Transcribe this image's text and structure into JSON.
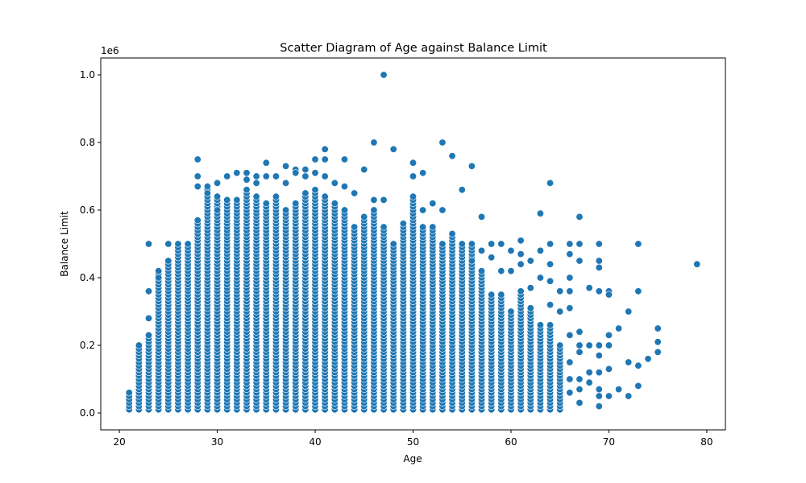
{
  "chart_data": {
    "type": "scatter",
    "title": "Scatter Diagram of Age  against  Balance Limit",
    "xlabel": "Age",
    "ylabel": "Balance Limit",
    "y_offset_label": "1e6",
    "xlim": [
      18.1,
      81.9
    ],
    "ylim": [
      -0.05,
      1.05
    ],
    "x_ticks": [
      20,
      30,
      40,
      50,
      60,
      70,
      80
    ],
    "y_ticks": [
      0.0,
      0.2,
      0.4,
      0.6,
      0.8,
      1.0
    ],
    "x_tick_labels": [
      "20",
      "30",
      "40",
      "50",
      "60",
      "70",
      "80"
    ],
    "y_tick_labels": [
      "0.0",
      "0.2",
      "0.4",
      "0.6",
      "0.8",
      "1.0"
    ],
    "point_color": "#1f77b4",
    "point_edge_color": "#ffffff",
    "dense_columns": [
      {
        "age": 21,
        "max": 0.06
      },
      {
        "age": 22,
        "max": 0.2
      },
      {
        "age": 23,
        "max": 0.23
      },
      {
        "age": 24,
        "max": 0.42
      },
      {
        "age": 25,
        "max": 0.45
      },
      {
        "age": 26,
        "max": 0.5
      },
      {
        "age": 27,
        "max": 0.5
      },
      {
        "age": 28,
        "max": 0.57
      },
      {
        "age": 29,
        "max": 0.67
      },
      {
        "age": 30,
        "max": 0.64
      },
      {
        "age": 31,
        "max": 0.63
      },
      {
        "age": 32,
        "max": 0.63
      },
      {
        "age": 33,
        "max": 0.66
      },
      {
        "age": 34,
        "max": 0.64
      },
      {
        "age": 35,
        "max": 0.62
      },
      {
        "age": 36,
        "max": 0.64
      },
      {
        "age": 37,
        "max": 0.6
      },
      {
        "age": 38,
        "max": 0.62
      },
      {
        "age": 39,
        "max": 0.65
      },
      {
        "age": 40,
        "max": 0.66
      },
      {
        "age": 41,
        "max": 0.64
      },
      {
        "age": 42,
        "max": 0.62
      },
      {
        "age": 43,
        "max": 0.6
      },
      {
        "age": 44,
        "max": 0.55
      },
      {
        "age": 45,
        "max": 0.58
      },
      {
        "age": 46,
        "max": 0.6
      },
      {
        "age": 47,
        "max": 0.55
      },
      {
        "age": 48,
        "max": 0.5
      },
      {
        "age": 49,
        "max": 0.56
      },
      {
        "age": 50,
        "max": 0.64
      },
      {
        "age": 51,
        "max": 0.55
      },
      {
        "age": 52,
        "max": 0.55
      },
      {
        "age": 53,
        "max": 0.5
      },
      {
        "age": 54,
        "max": 0.53
      },
      {
        "age": 55,
        "max": 0.5
      },
      {
        "age": 56,
        "max": 0.5
      },
      {
        "age": 57,
        "max": 0.42
      },
      {
        "age": 58,
        "max": 0.35
      },
      {
        "age": 59,
        "max": 0.35
      },
      {
        "age": 60,
        "max": 0.3
      },
      {
        "age": 61,
        "max": 0.36
      },
      {
        "age": 62,
        "max": 0.31
      },
      {
        "age": 63,
        "max": 0.26
      },
      {
        "age": 64,
        "max": 0.26
      },
      {
        "age": 65,
        "max": 0.2
      }
    ],
    "points": [
      [
        23,
        0.5
      ],
      [
        23,
        0.36
      ],
      [
        23,
        0.28
      ],
      [
        24,
        0.4
      ],
      [
        25,
        0.5
      ],
      [
        28,
        0.75
      ],
      [
        28,
        0.7
      ],
      [
        28,
        0.67
      ],
      [
        29,
        0.65
      ],
      [
        30,
        0.68
      ],
      [
        30,
        0.6
      ],
      [
        31,
        0.7
      ],
      [
        32,
        0.71
      ],
      [
        33,
        0.71
      ],
      [
        33,
        0.69
      ],
      [
        34,
        0.7
      ],
      [
        34,
        0.68
      ],
      [
        35,
        0.74
      ],
      [
        35,
        0.7
      ],
      [
        36,
        0.7
      ],
      [
        37,
        0.73
      ],
      [
        37,
        0.68
      ],
      [
        38,
        0.72
      ],
      [
        38,
        0.71
      ],
      [
        39,
        0.7
      ],
      [
        39,
        0.72
      ],
      [
        40,
        0.75
      ],
      [
        40,
        0.71
      ],
      [
        41,
        0.78
      ],
      [
        41,
        0.75
      ],
      [
        41,
        0.7
      ],
      [
        42,
        0.68
      ],
      [
        43,
        0.75
      ],
      [
        43,
        0.67
      ],
      [
        44,
        0.65
      ],
      [
        45,
        0.72
      ],
      [
        46,
        0.8
      ],
      [
        46,
        0.63
      ],
      [
        47,
        1.0
      ],
      [
        47,
        0.63
      ],
      [
        48,
        0.78
      ],
      [
        50,
        0.74
      ],
      [
        50,
        0.7
      ],
      [
        51,
        0.71
      ],
      [
        51,
        0.6
      ],
      [
        52,
        0.62
      ],
      [
        53,
        0.8
      ],
      [
        53,
        0.6
      ],
      [
        54,
        0.76
      ],
      [
        55,
        0.66
      ],
      [
        56,
        0.73
      ],
      [
        57,
        0.58
      ],
      [
        56,
        0.45
      ],
      [
        57,
        0.48
      ],
      [
        58,
        0.5
      ],
      [
        58,
        0.46
      ],
      [
        59,
        0.5
      ],
      [
        59,
        0.42
      ],
      [
        60,
        0.48
      ],
      [
        60,
        0.42
      ],
      [
        61,
        0.51
      ],
      [
        61,
        0.47
      ],
      [
        61,
        0.44
      ],
      [
        62,
        0.45
      ],
      [
        62,
        0.37
      ],
      [
        63,
        0.59
      ],
      [
        63,
        0.48
      ],
      [
        63,
        0.4
      ],
      [
        64,
        0.68
      ],
      [
        64,
        0.5
      ],
      [
        64,
        0.44
      ],
      [
        64,
        0.39
      ],
      [
        64,
        0.32
      ],
      [
        65,
        0.36
      ],
      [
        65,
        0.3
      ],
      [
        66,
        0.5
      ],
      [
        66,
        0.47
      ],
      [
        66,
        0.4
      ],
      [
        66,
        0.36
      ],
      [
        66,
        0.31
      ],
      [
        66,
        0.23
      ],
      [
        66,
        0.15
      ],
      [
        66,
        0.1
      ],
      [
        66,
        0.06
      ],
      [
        67,
        0.58
      ],
      [
        67,
        0.5
      ],
      [
        67,
        0.45
      ],
      [
        67,
        0.24
      ],
      [
        67,
        0.2
      ],
      [
        67,
        0.18
      ],
      [
        67,
        0.1
      ],
      [
        67,
        0.07
      ],
      [
        67,
        0.03
      ],
      [
        68,
        0.37
      ],
      [
        68,
        0.2
      ],
      [
        68,
        0.12
      ],
      [
        68,
        0.09
      ],
      [
        69,
        0.5
      ],
      [
        69,
        0.45
      ],
      [
        69,
        0.43
      ],
      [
        69,
        0.36
      ],
      [
        69,
        0.2
      ],
      [
        69,
        0.17
      ],
      [
        69,
        0.12
      ],
      [
        69,
        0.07
      ],
      [
        69,
        0.05
      ],
      [
        69,
        0.02
      ],
      [
        70,
        0.36
      ],
      [
        70,
        0.35
      ],
      [
        70,
        0.23
      ],
      [
        70,
        0.2
      ],
      [
        70,
        0.13
      ],
      [
        70,
        0.05
      ],
      [
        71,
        0.25
      ],
      [
        71,
        0.07
      ],
      [
        72,
        0.3
      ],
      [
        72,
        0.15
      ],
      [
        72,
        0.05
      ],
      [
        73,
        0.5
      ],
      [
        73,
        0.36
      ],
      [
        73,
        0.14
      ],
      [
        73,
        0.08
      ],
      [
        74,
        0.16
      ],
      [
        75,
        0.25
      ],
      [
        75,
        0.21
      ],
      [
        75,
        0.18
      ],
      [
        79,
        0.44
      ]
    ]
  }
}
